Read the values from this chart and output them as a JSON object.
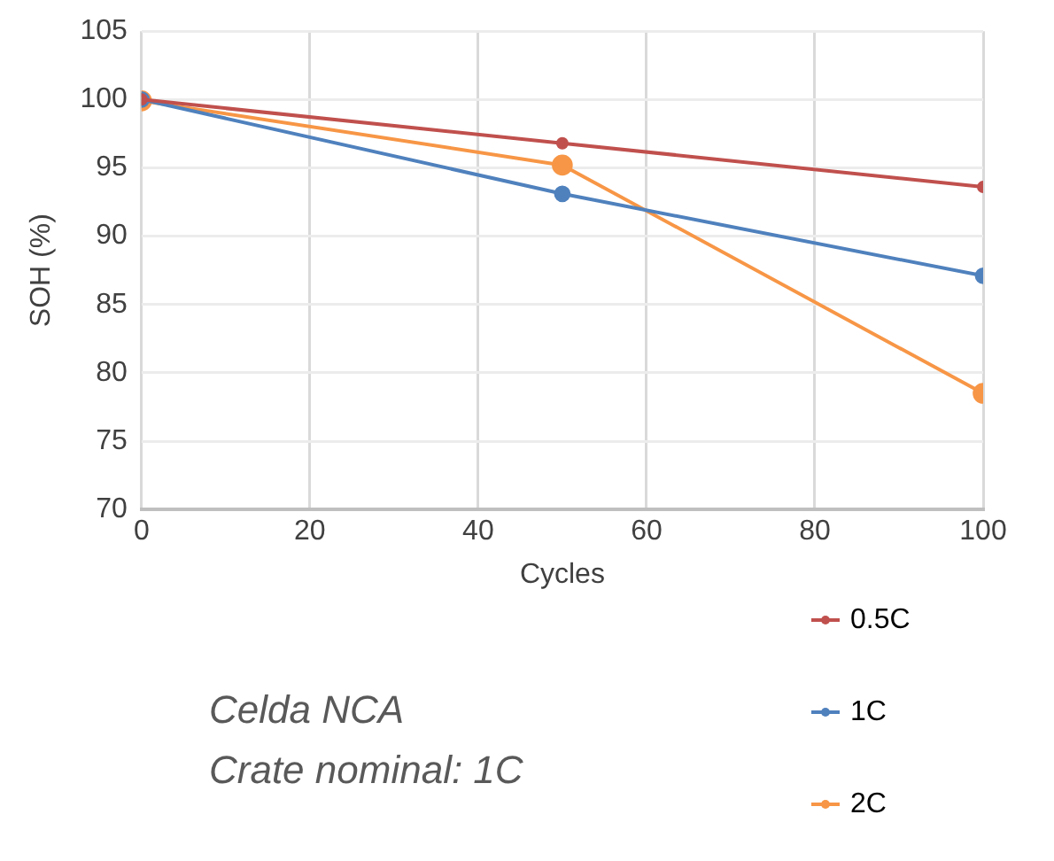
{
  "chart_data": {
    "type": "line",
    "xlabel": "Cycles",
    "ylabel": "SOH (%)",
    "x": [
      0,
      50,
      100
    ],
    "series": [
      {
        "name": "0.5C",
        "color": "#c0504d",
        "values": [
          100,
          96.8,
          93.6
        ]
      },
      {
        "name": "1C",
        "color": "#4f81bd",
        "values": [
          100,
          93.1,
          87.1
        ]
      },
      {
        "name": "2C",
        "color": "#f79646",
        "values": [
          99.9,
          95.2,
          78.5
        ]
      }
    ],
    "xlim": [
      0,
      100
    ],
    "xticks": [
      0,
      20,
      40,
      60,
      80,
      100
    ],
    "ylim": [
      70,
      105
    ],
    "yticks": [
      70,
      75,
      80,
      85,
      90,
      95,
      100,
      105
    ],
    "grid": true,
    "legend": "bottom right",
    "marker": "circle",
    "line_style": "solid",
    "annotations": [
      "Celda NCA",
      "Crate nominal: 1C"
    ]
  }
}
